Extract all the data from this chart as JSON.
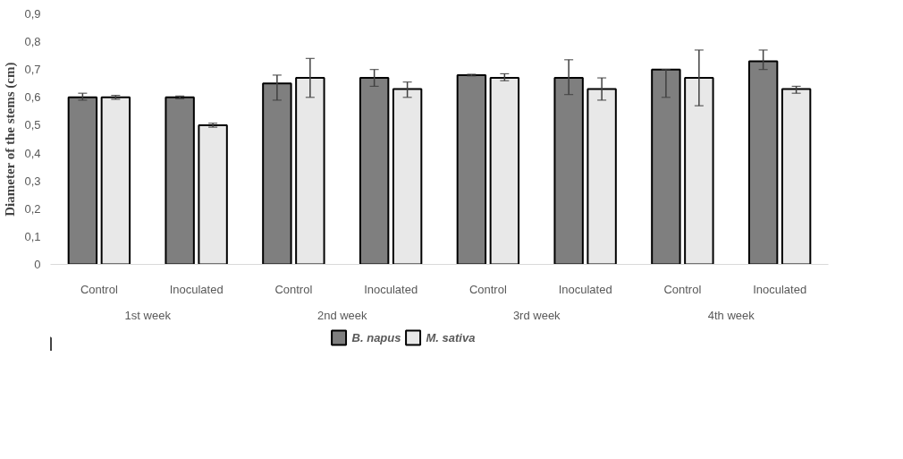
{
  "chart_data": {
    "type": "bar",
    "ylabel": "Diameter of the stems (cm)",
    "categories": [
      "Control",
      "Inoculated",
      "Control",
      "Inoculated",
      "Control",
      "Inoculated",
      "Control",
      "Inoculated"
    ],
    "annotations": [
      "1st week",
      "2nd week",
      "3rd week",
      "4th week"
    ],
    "series": [
      {
        "name": "B. napus",
        "color": "#7f7f7f",
        "values": [
          0.6,
          0.6,
          0.65,
          0.67,
          0.68,
          0.67,
          0.7,
          0.73
        ],
        "errors": [
          [
            0.59,
            0.615
          ],
          [
            0.595,
            0.605
          ],
          [
            0.59,
            0.68
          ],
          [
            0.64,
            0.7
          ],
          [
            0.677,
            0.683
          ],
          [
            0.61,
            0.735
          ],
          [
            0.6,
            0.7
          ],
          [
            0.7,
            0.77
          ]
        ]
      },
      {
        "name": "M. sativa",
        "color": "#e8e8e8",
        "values": [
          0.6,
          0.5,
          0.67,
          0.63,
          0.67,
          0.63,
          0.67,
          0.63
        ],
        "errors": [
          [
            0.593,
            0.607
          ],
          [
            0.493,
            0.507
          ],
          [
            0.6,
            0.74
          ],
          [
            0.6,
            0.655
          ],
          [
            0.66,
            0.685
          ],
          [
            0.59,
            0.67
          ],
          [
            0.57,
            0.77
          ],
          [
            0.615,
            0.64
          ]
        ]
      }
    ],
    "ylim": [
      0,
      0.9
    ],
    "yticks": [
      0,
      {
        "value": 0.1,
        "label": "0,1"
      },
      {
        "value": 0.2,
        "label": "0,2"
      },
      {
        "value": 0.3,
        "label": "0,3"
      },
      {
        "value": 0.4,
        "label": "0,4"
      },
      {
        "value": 0.5,
        "label": "0,5"
      },
      {
        "value": 0.6,
        "label": "0,6"
      },
      {
        "value": 0.7,
        "label": "0,7"
      },
      {
        "value": 0.8,
        "label": "0,8"
      },
      {
        "value": 0.9,
        "label": "0,9"
      }
    ],
    "grid": false,
    "legend": "bottom"
  }
}
